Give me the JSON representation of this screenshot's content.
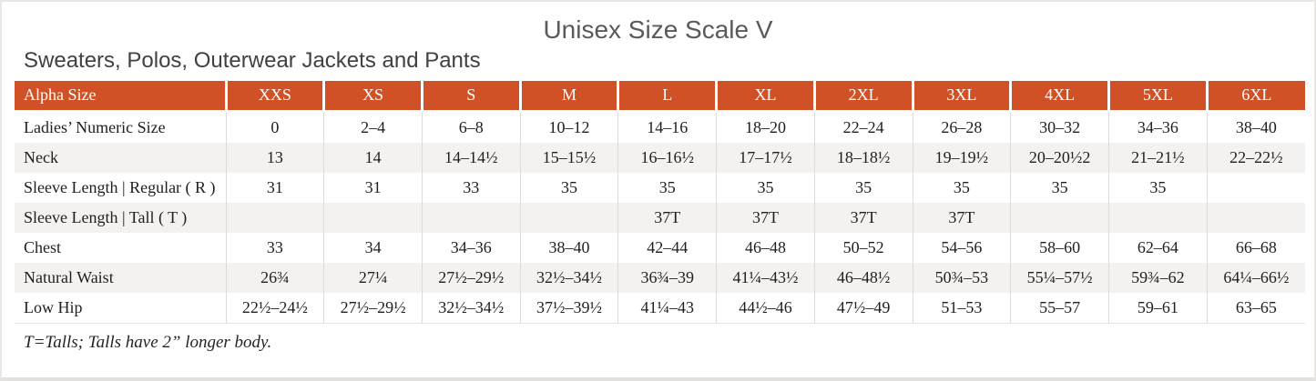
{
  "page": {
    "title": "Unisex Size Scale V",
    "subtitle": "Sweaters, Polos, Outerwear Jackets and Pants",
    "footnote": "T=Talls; Talls have 2” longer body."
  },
  "colors": {
    "header_bg": "#d05126",
    "header_text": "#ffffff",
    "shaded_row_bg": "#f3f2f0",
    "grid_line": "#dcdbd8",
    "title_text": "#595a5c",
    "body_text": "#1f1f1f"
  },
  "table": {
    "header": [
      "Alpha Size",
      "XXS",
      "XS",
      "S",
      "M",
      "L",
      "XL",
      "2XL",
      "3XL",
      "4XL",
      "5XL",
      "6XL"
    ],
    "rows": [
      {
        "label": "Ladies’ Numeric Size",
        "shaded": false,
        "values": [
          "0",
          "2–4",
          "6–8",
          "10–12",
          "14–16",
          "18–20",
          "22–24",
          "26–28",
          "30–32",
          "34–36",
          "38–40"
        ]
      },
      {
        "label": "Neck",
        "shaded": true,
        "values": [
          "13",
          "14",
          "14–14½",
          "15–15½",
          "16–16½",
          "17–17½",
          "18–18½",
          "19–19½",
          "20–20½2",
          "21–21½",
          "22–22½"
        ]
      },
      {
        "label": "Sleeve Length | Regular ( R )",
        "shaded": false,
        "values": [
          "31",
          "31",
          "33",
          "35",
          "35",
          "35",
          "35",
          "35",
          "35",
          "35",
          ""
        ]
      },
      {
        "label": "Sleeve Length | Tall ( T )",
        "shaded": true,
        "values": [
          "",
          "",
          "",
          "",
          "37T",
          "37T",
          "37T",
          "37T",
          "",
          "",
          ""
        ]
      },
      {
        "label": "Chest",
        "shaded": false,
        "values": [
          "33",
          "34",
          "34–36",
          "38–40",
          "42–44",
          "46–48",
          "50–52",
          "54–56",
          "58–60",
          "62–64",
          "66–68"
        ]
      },
      {
        "label": "Natural Waist",
        "shaded": true,
        "values": [
          "26¾",
          "27¼",
          "27½–29½",
          "32½–34½",
          "36¾–39",
          "41¼–43½",
          "46–48½",
          "50¾–53",
          "55¼–57½",
          "59¾–62",
          "64¼–66½"
        ]
      },
      {
        "label": "Low Hip",
        "shaded": false,
        "values": [
          "22½–24½",
          "27½–29½",
          "32½–34½",
          "37½–39½",
          "41¼–43",
          "44½–46",
          "47½–49",
          "51–53",
          "55–57",
          "59–61",
          "63–65"
        ]
      }
    ]
  }
}
